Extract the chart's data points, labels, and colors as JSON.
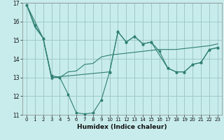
{
  "xlabel": "Humidex (Indice chaleur)",
  "background_color": "#c8ecec",
  "grid_color": "#a0c8c8",
  "line_color": "#2e7f72",
  "xlim": [
    -0.5,
    23.5
  ],
  "ylim": [
    11,
    17
  ],
  "yticks": [
    11,
    12,
    13,
    14,
    15,
    16,
    17
  ],
  "xticks": [
    0,
    1,
    2,
    3,
    4,
    5,
    6,
    7,
    8,
    9,
    10,
    11,
    12,
    13,
    14,
    15,
    16,
    17,
    18,
    19,
    20,
    21,
    22,
    23
  ],
  "series1_x": [
    0,
    1,
    2,
    3,
    4,
    5,
    6,
    7,
    8,
    9,
    10,
    11,
    12,
    13,
    14,
    15,
    16,
    17,
    18,
    19,
    20,
    21,
    22,
    23
  ],
  "series1_y": [
    16.9,
    15.8,
    15.1,
    13.1,
    13.0,
    12.1,
    11.1,
    11.05,
    11.1,
    11.8,
    13.3,
    15.45,
    14.9,
    15.2,
    14.8,
    14.9,
    14.4,
    13.5,
    13.3,
    13.3,
    13.7,
    13.8,
    14.5,
    14.6
  ],
  "series2_x": [
    0,
    1,
    2,
    3,
    4,
    5,
    6,
    7,
    8,
    9,
    10,
    11,
    12,
    13,
    14,
    15,
    16,
    17,
    18,
    19,
    20,
    21,
    22,
    23
  ],
  "series2_y": [
    16.9,
    15.7,
    15.1,
    13.0,
    13.0,
    13.3,
    13.35,
    13.7,
    13.75,
    14.1,
    14.2,
    14.25,
    14.3,
    14.35,
    14.4,
    14.45,
    14.5,
    14.5,
    14.5,
    14.55,
    14.6,
    14.65,
    14.7,
    14.8
  ],
  "series3_x": [
    0,
    2,
    3,
    10,
    11,
    12,
    13,
    14,
    15,
    17,
    18,
    19,
    20,
    21,
    22,
    23
  ],
  "series3_y": [
    16.9,
    15.1,
    13.0,
    13.3,
    15.45,
    14.9,
    15.2,
    14.8,
    14.9,
    13.5,
    13.3,
    13.3,
    13.7,
    13.8,
    14.5,
    14.6
  ]
}
